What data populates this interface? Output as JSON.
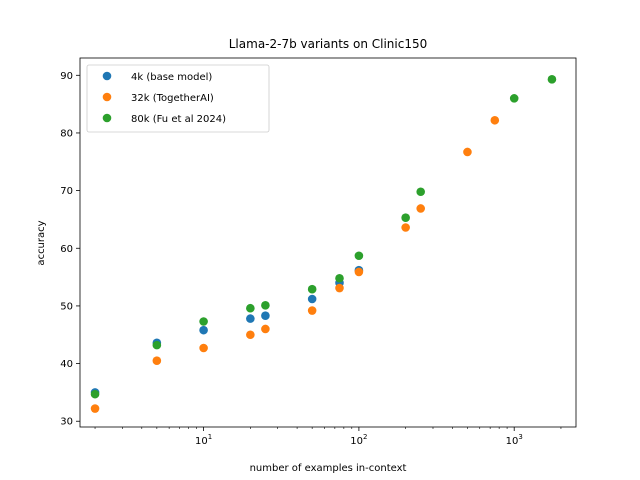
{
  "chart_data": {
    "type": "scatter",
    "title": "Llama-2-7b variants on Clinic150",
    "xlabel": "number of examples in-context",
    "ylabel": "accuracy",
    "xscale": "log",
    "xlim": [
      1.6,
      2500
    ],
    "ylim": [
      29,
      93
    ],
    "grid": false,
    "legend_position": "top-left",
    "x_major_ticks": [
      {
        "value": 10,
        "base": "10",
        "exp": "1"
      },
      {
        "value": 100,
        "base": "10",
        "exp": "2"
      },
      {
        "value": 1000,
        "base": "10",
        "exp": "3"
      }
    ],
    "x_minor_ticks": [
      2,
      3,
      4,
      5,
      6,
      7,
      8,
      9,
      20,
      30,
      40,
      50,
      60,
      70,
      80,
      90,
      200,
      300,
      400,
      500,
      600,
      700,
      800,
      900,
      2000
    ],
    "y_ticks": [
      {
        "value": 30,
        "label": "30"
      },
      {
        "value": 40,
        "label": "40"
      },
      {
        "value": 50,
        "label": "50"
      },
      {
        "value": 60,
        "label": "60"
      },
      {
        "value": 70,
        "label": "70"
      },
      {
        "value": 80,
        "label": "80"
      },
      {
        "value": 90,
        "label": "90"
      }
    ],
    "series": [
      {
        "name": "4k (base model)",
        "color": "#1f77b4",
        "points": [
          [
            2,
            35.0
          ],
          [
            5,
            43.6
          ],
          [
            10,
            45.8
          ],
          [
            20,
            47.8
          ],
          [
            25,
            48.3
          ],
          [
            50,
            51.2
          ],
          [
            75,
            54.0
          ],
          [
            100,
            56.2
          ]
        ]
      },
      {
        "name": "32k (TogetherAI)",
        "color": "#ff7f0e",
        "points": [
          [
            2,
            32.2
          ],
          [
            5,
            40.5
          ],
          [
            10,
            42.7
          ],
          [
            20,
            45.0
          ],
          [
            25,
            46.0
          ],
          [
            50,
            49.2
          ],
          [
            75,
            53.1
          ],
          [
            100,
            55.9
          ],
          [
            200,
            63.6
          ],
          [
            250,
            66.9
          ],
          [
            500,
            76.7
          ],
          [
            750,
            82.2
          ]
        ]
      },
      {
        "name": "80k (Fu et al 2024)",
        "color": "#2ca02c",
        "points": [
          [
            2,
            34.7
          ],
          [
            5,
            43.2
          ],
          [
            10,
            47.3
          ],
          [
            20,
            49.6
          ],
          [
            25,
            50.1
          ],
          [
            50,
            52.9
          ],
          [
            75,
            54.8
          ],
          [
            100,
            58.7
          ],
          [
            200,
            65.3
          ],
          [
            250,
            69.8
          ],
          [
            1000,
            86.0
          ],
          [
            1750,
            89.3
          ]
        ]
      }
    ]
  }
}
